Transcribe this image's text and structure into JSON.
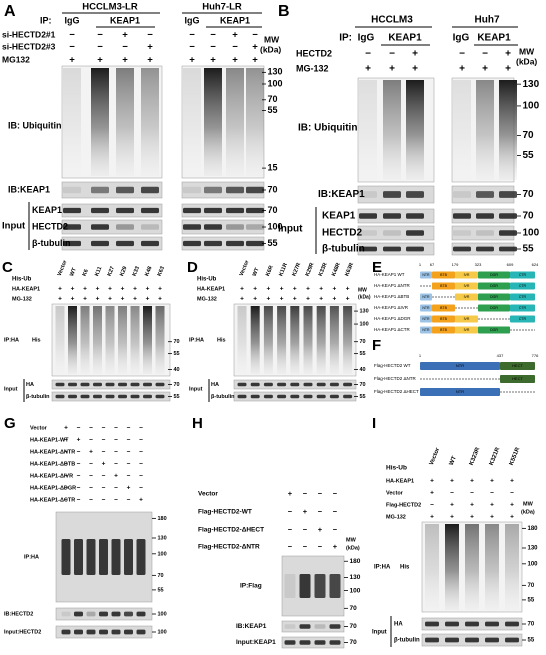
{
  "panel_a": {
    "label": "A",
    "groups": [
      "HCCLM3-LR",
      "Huh7-LR"
    ],
    "ip": "IP:",
    "ip_cols": [
      "IgG",
      "KEAP1"
    ],
    "rows": [
      {
        "name": "si-HECTD2#1",
        "signs": [
          "−",
          "−",
          "+",
          "−",
          "−",
          "−",
          "+",
          "−"
        ]
      },
      {
        "name": "si-HECTD2#3",
        "signs": [
          "−",
          "−",
          "−",
          "+",
          "−",
          "−",
          "−",
          "+"
        ]
      },
      {
        "name": "MG132",
        "signs": [
          "+",
          "+",
          "+",
          "+",
          "+",
          "+",
          "+",
          "+"
        ]
      }
    ],
    "mw": [
      "MW",
      "(kDa)"
    ],
    "blots": [
      {
        "label": "IB: Ubiquitin",
        "markers": [
          130,
          100,
          70,
          55,
          15
        ]
      },
      {
        "label": "IB:KEAP1",
        "markers": [
          70
        ]
      },
      {
        "label": "KEAP1",
        "markers": [
          70
        ]
      },
      {
        "label": "HECTD2",
        "markers": [
          100
        ]
      },
      {
        "label": "β-tubulin",
        "markers": [
          55
        ]
      }
    ],
    "input": "Input"
  },
  "panel_b": {
    "label": "B",
    "groups": [
      "HCCLM3",
      "Huh7"
    ],
    "ip": "IP:",
    "ip_cols": [
      "IgG",
      "KEAP1"
    ],
    "rows": [
      {
        "name": "HECTD2",
        "signs": [
          "−",
          "−",
          "+",
          "−",
          "−",
          "+"
        ]
      },
      {
        "name": "MG-132",
        "signs": [
          "+",
          "+",
          "+",
          "+",
          "+",
          "+"
        ]
      }
    ],
    "mw": [
      "MW",
      "(kDa)"
    ],
    "blots": [
      {
        "label": "IB: Ubiquitin",
        "markers": [
          130,
          100,
          70,
          55
        ]
      },
      {
        "label": "IB:KEAP1",
        "markers": [
          70
        ]
      },
      {
        "label": "KEAP1",
        "markers": [
          70
        ]
      },
      {
        "label": "HECTD2",
        "markers": [
          100
        ]
      },
      {
        "label": "β-tubulin",
        "markers": [
          55
        ]
      }
    ],
    "input": "Input"
  },
  "panel_c": {
    "label": "C",
    "columns_label": "His-Ub",
    "columns": [
      "Vector",
      "WT",
      "K6",
      "K11",
      "K27",
      "K29",
      "K33",
      "K48",
      "K63"
    ],
    "rows": [
      {
        "name": "HA-KEAP1",
        "signs": [
          "+",
          "+",
          "+",
          "+",
          "+",
          "+",
          "+",
          "+",
          "+"
        ]
      },
      {
        "name": "MG-132",
        "signs": [
          "+",
          "+",
          "+",
          "+",
          "+",
          "+",
          "+",
          "+",
          "+"
        ]
      }
    ],
    "blots": [
      {
        "label": "IP:HA",
        "antibody": "His",
        "markers": [
          70,
          55,
          40
        ]
      },
      {
        "label": "HA",
        "markers": [
          70
        ]
      },
      {
        "label": "β-tubulin",
        "markers": [
          55
        ]
      }
    ],
    "input": "Input"
  },
  "panel_d": {
    "label": "D",
    "columns_label": "His-Ub",
    "columns": [
      "Vector",
      "WT",
      "K6R",
      "K11R",
      "K27R",
      "K29R",
      "K33R",
      "K48R",
      "K63R"
    ],
    "rows": [
      {
        "name": "HA-KEAP1",
        "signs": [
          "+",
          "+",
          "+",
          "+",
          "+",
          "+",
          "+",
          "+",
          "+"
        ]
      },
      {
        "name": "MG-132",
        "signs": [
          "+",
          "+",
          "+",
          "+",
          "+",
          "+",
          "+",
          "+",
          "+"
        ]
      }
    ],
    "mw": [
      "MW",
      "(kDa)"
    ],
    "blots": [
      {
        "label": "IP:HA",
        "antibody": "His",
        "markers": [
          130,
          100,
          70,
          55,
          40
        ]
      },
      {
        "label": "HA",
        "markers": [
          70
        ]
      },
      {
        "label": "β-tubulin",
        "markers": [
          55
        ]
      }
    ],
    "input": "Input"
  },
  "panel_e": {
    "label": "E",
    "constructs": [
      "HA-KEAP1 WT",
      "HA-KEAP1 ΔNTR",
      "HA-KEAP1 ΔBTB",
      "HA-KEAP1 ΔIVR",
      "HA-KEAP1 ΔDGR",
      "HA-KEAP1 ΔCTR"
    ],
    "domains": [
      "NTR",
      "BTB",
      "IVR",
      "DGR",
      "CTR"
    ],
    "positions": [
      1,
      67,
      179,
      323,
      609,
      624
    ]
  },
  "panel_f": {
    "label": "F",
    "constructs": [
      "Flag-HECTD2 WT",
      "Flag-HECTD2 ΔNTR",
      "Flag-HECTD2 ΔHECT"
    ],
    "domains": [
      "NTR",
      "HECT"
    ],
    "positions": [
      1,
      437,
      776
    ]
  },
  "panel_g": {
    "label": "G",
    "rows": [
      {
        "name": "Vector",
        "signs": [
          "+",
          "−",
          "−",
          "−",
          "−",
          "−",
          "−"
        ]
      },
      {
        "name": "HA-KEAP1-WT",
        "signs": [
          "−",
          "+",
          "−",
          "−",
          "−",
          "−",
          "−"
        ]
      },
      {
        "name": "HA-KEAP1-ΔNTR",
        "signs": [
          "−",
          "−",
          "+",
          "−",
          "−",
          "−",
          "−"
        ]
      },
      {
        "name": "HA-KEAP1-ΔBTB",
        "signs": [
          "−",
          "−",
          "−",
          "+",
          "−",
          "−",
          "−"
        ]
      },
      {
        "name": "HA-KEAP1-ΔIVR",
        "signs": [
          "−",
          "−",
          "−",
          "−",
          "+",
          "−",
          "−"
        ]
      },
      {
        "name": "HA-KEAP1-ΔDGR",
        "signs": [
          "−",
          "−",
          "−",
          "−",
          "−",
          "+",
          "−"
        ]
      },
      {
        "name": "HA-KEAP1-ΔCTR",
        "signs": [
          "−",
          "−",
          "−",
          "−",
          "−",
          "−",
          "+"
        ]
      }
    ],
    "blots": [
      {
        "label": "IP:HA",
        "markers": [
          180,
          130,
          100,
          70,
          55
        ]
      },
      {
        "label": "IB:HECTD2",
        "markers": [
          100
        ]
      },
      {
        "label": "Input:HECTD2",
        "markers": [
          100
        ]
      }
    ]
  },
  "panel_h": {
    "label": "H",
    "rows": [
      {
        "name": "Vector",
        "signs": [
          "+",
          "−",
          "−",
          "−"
        ]
      },
      {
        "name": "Flag-HECTD2-WT",
        "signs": [
          "−",
          "+",
          "−",
          "−"
        ]
      },
      {
        "name": "Flag-HECTD2-ΔHECT",
        "signs": [
          "−",
          "−",
          "+",
          "−"
        ]
      },
      {
        "name": "Flag-HECTD2-ΔNTR",
        "signs": [
          "−",
          "−",
          "−",
          "+"
        ]
      }
    ],
    "mw": [
      "MW",
      "(kDa)"
    ],
    "blots": [
      {
        "label": "IP:Flag",
        "markers": [
          180,
          130,
          100,
          70
        ]
      },
      {
        "label": "IB:KEAP1",
        "markers": [
          70
        ]
      },
      {
        "label": "Input:KEAP1",
        "markers": [
          70
        ]
      }
    ]
  },
  "panel_i": {
    "label": "I",
    "columns_label": "His-Ub",
    "columns": [
      "Vector",
      "WT",
      "K323R",
      "K321R",
      "K551R"
    ],
    "rows": [
      {
        "name": "HA-KEAP1",
        "signs": [
          "+",
          "+",
          "+",
          "+",
          "+"
        ]
      },
      {
        "name": "Vector",
        "signs": [
          "+",
          "−",
          "−",
          "−",
          "−"
        ]
      },
      {
        "name": "Flag-HECTD2",
        "signs": [
          "−",
          "+",
          "+",
          "+",
          "+"
        ]
      },
      {
        "name": "MG-132",
        "signs": [
          "+",
          "+",
          "+",
          "+",
          "+"
        ]
      }
    ],
    "mw": [
      "MW",
      "(kDa)"
    ],
    "blots": [
      {
        "label": "IP:HA",
        "antibody": "His",
        "markers": [
          180,
          130,
          100,
          70,
          55
        ]
      },
      {
        "label": "HA",
        "markers": [
          70
        ]
      },
      {
        "label": "β-tubulin",
        "markers": [
          55
        ]
      }
    ],
    "input": "Input"
  }
}
